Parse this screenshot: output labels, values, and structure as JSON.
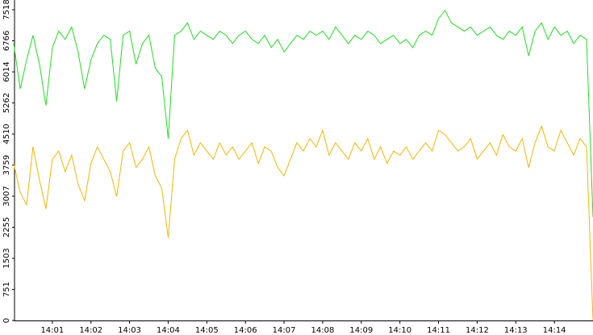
{
  "chart_data": {
    "type": "line",
    "xlim": [
      0,
      900
    ],
    "xticks": [
      {
        "value": 60,
        "label": "14:01"
      },
      {
        "value": 120,
        "label": "14:02"
      },
      {
        "value": 180,
        "label": "14:03"
      },
      {
        "value": 240,
        "label": "14:04"
      },
      {
        "value": 300,
        "label": "14:05"
      },
      {
        "value": 360,
        "label": "14:06"
      },
      {
        "value": 420,
        "label": "14:07"
      },
      {
        "value": 480,
        "label": "14:08"
      },
      {
        "value": 540,
        "label": "14:09"
      },
      {
        "value": 600,
        "label": "14:10"
      },
      {
        "value": 660,
        "label": "14:11"
      },
      {
        "value": 720,
        "label": "14:12"
      },
      {
        "value": 780,
        "label": "14:13"
      },
      {
        "value": 840,
        "label": "14:14"
      }
    ],
    "ylim": [
      0,
      7753
    ],
    "yticks": [
      0,
      751,
      1503,
      2255,
      3007,
      3759,
      4510,
      5262,
      6014,
      6766,
      7518
    ],
    "grid": false,
    "x": [
      0,
      10,
      20,
      30,
      40,
      50,
      60,
      70,
      80,
      90,
      100,
      110,
      120,
      130,
      140,
      150,
      160,
      170,
      180,
      190,
      200,
      210,
      220,
      230,
      240,
      250,
      260,
      270,
      280,
      290,
      300,
      310,
      320,
      330,
      340,
      350,
      360,
      370,
      380,
      390,
      400,
      410,
      420,
      430,
      440,
      450,
      460,
      470,
      480,
      490,
      500,
      510,
      520,
      530,
      540,
      550,
      560,
      570,
      580,
      590,
      600,
      610,
      620,
      630,
      640,
      650,
      660,
      670,
      680,
      690,
      700,
      710,
      720,
      730,
      740,
      750,
      760,
      770,
      780,
      790,
      800,
      810,
      820,
      830,
      840,
      850,
      860,
      870,
      880,
      890,
      900
    ],
    "series": [
      {
        "color": "#22dd22",
        "values": [
          6700,
          5600,
          6300,
          6900,
          6200,
          5200,
          6600,
          7000,
          6800,
          7100,
          6500,
          5600,
          6300,
          6700,
          6900,
          6800,
          5300,
          6900,
          7000,
          6200,
          6700,
          6900,
          6100,
          5900,
          4400,
          6900,
          7000,
          7200,
          6800,
          7000,
          6900,
          6800,
          7000,
          6900,
          6700,
          6900,
          7000,
          6800,
          6700,
          6900,
          6600,
          6800,
          6500,
          6700,
          6900,
          6800,
          7000,
          6900,
          7000,
          6800,
          7100,
          6900,
          6700,
          6900,
          6800,
          7000,
          6900,
          6700,
          6800,
          6900,
          6700,
          6800,
          6600,
          6900,
          7000,
          6900,
          7300,
          7500,
          7200,
          7100,
          7000,
          7100,
          6900,
          7000,
          7100,
          6900,
          6800,
          7000,
          6900,
          7100,
          6400,
          7000,
          7200,
          6800,
          7100,
          6900,
          7000,
          6700,
          6900,
          6800,
          2500
        ]
      },
      {
        "color": "#f0b800",
        "values": [
          3800,
          3100,
          2800,
          4200,
          3400,
          2700,
          3900,
          4100,
          3600,
          4000,
          3300,
          2900,
          3800,
          4200,
          3900,
          3600,
          3000,
          4100,
          4300,
          3700,
          3900,
          4200,
          3500,
          3200,
          2000,
          3900,
          4400,
          4600,
          4000,
          4300,
          4100,
          3900,
          4300,
          4000,
          4200,
          3900,
          4100,
          4300,
          3800,
          4200,
          4100,
          3700,
          3500,
          3900,
          4300,
          4100,
          4400,
          4200,
          4600,
          4000,
          4300,
          4100,
          3900,
          4300,
          4100,
          4400,
          3900,
          4200,
          3800,
          4100,
          4000,
          4200,
          3900,
          4100,
          4300,
          4100,
          4600,
          4500,
          4300,
          4100,
          4200,
          4400,
          3900,
          4100,
          4300,
          4000,
          4500,
          4200,
          4100,
          4400,
          3700,
          4300,
          4700,
          4200,
          4100,
          4600,
          4300,
          4000,
          4400,
          4200,
          0
        ]
      }
    ]
  }
}
